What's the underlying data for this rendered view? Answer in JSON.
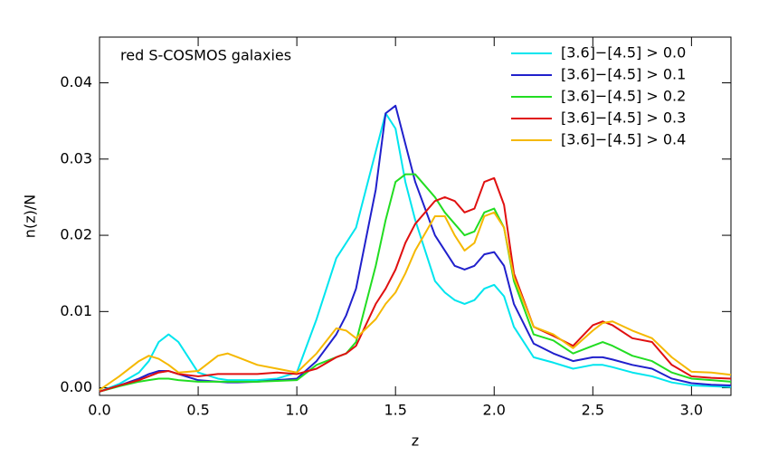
{
  "chart_data": {
    "type": "line",
    "annotation": "red S-COSMOS galaxies",
    "xlabel": "z",
    "ylabel": "n(z)/N",
    "x": [
      0,
      0.1,
      0.2,
      0.25,
      0.3,
      0.35,
      0.4,
      0.5,
      0.6,
      0.65,
      0.7,
      0.8,
      0.9,
      1.0,
      1.1,
      1.2,
      1.25,
      1.3,
      1.4,
      1.45,
      1.5,
      1.55,
      1.6,
      1.7,
      1.75,
      1.8,
      1.85,
      1.9,
      1.95,
      2.0,
      2.05,
      2.1,
      2.2,
      2.3,
      2.4,
      2.5,
      2.55,
      2.6,
      2.7,
      2.8,
      2.9,
      3.0,
      3.1,
      3.2
    ],
    "series": [
      {
        "name": "[3.6]−[4.5] > 0.0",
        "color": "#00e5ee",
        "values": [
          -0.0005,
          0.0005,
          0.002,
          0.0035,
          0.006,
          0.007,
          0.006,
          0.002,
          0.0012,
          0.001,
          0.001,
          0.001,
          0.0012,
          0.002,
          0.009,
          0.017,
          0.019,
          0.021,
          0.031,
          0.036,
          0.034,
          0.027,
          0.022,
          0.014,
          0.0125,
          0.0115,
          0.011,
          0.0115,
          0.013,
          0.0135,
          0.012,
          0.008,
          0.004,
          0.0033,
          0.0025,
          0.003,
          0.003,
          0.0027,
          0.002,
          0.0015,
          0.0007,
          0.0003,
          0.0002,
          0.0001
        ]
      },
      {
        "name": "[3.6]−[4.5] > 0.1",
        "color": "#2020cc",
        "values": [
          -0.0005,
          0.0003,
          0.0012,
          0.0018,
          0.0022,
          0.0022,
          0.0018,
          0.001,
          0.0008,
          0.0007,
          0.0007,
          0.0008,
          0.001,
          0.0012,
          0.0035,
          0.007,
          0.0095,
          0.013,
          0.026,
          0.036,
          0.037,
          0.032,
          0.027,
          0.02,
          0.018,
          0.016,
          0.0155,
          0.016,
          0.0175,
          0.0178,
          0.016,
          0.011,
          0.0058,
          0.0045,
          0.0035,
          0.004,
          0.004,
          0.0037,
          0.003,
          0.0025,
          0.0012,
          0.0006,
          0.0004,
          0.0003
        ]
      },
      {
        "name": "[3.6]−[4.5] > 0.2",
        "color": "#22dd22",
        "values": [
          -0.0005,
          0.0002,
          0.0008,
          0.001,
          0.0012,
          0.0012,
          0.001,
          0.0008,
          0.0008,
          0.0008,
          0.0008,
          0.0008,
          0.0009,
          0.001,
          0.003,
          0.004,
          0.0045,
          0.006,
          0.016,
          0.022,
          0.027,
          0.028,
          0.028,
          0.025,
          0.023,
          0.0215,
          0.02,
          0.0205,
          0.023,
          0.0235,
          0.021,
          0.014,
          0.007,
          0.0062,
          0.0045,
          0.0055,
          0.006,
          0.0055,
          0.0042,
          0.0035,
          0.002,
          0.0012,
          0.001,
          0.0008
        ]
      },
      {
        "name": "[3.6]−[4.5] > 0.3",
        "color": "#e01010",
        "values": [
          -0.0005,
          0.0003,
          0.001,
          0.0015,
          0.002,
          0.0022,
          0.0018,
          0.0015,
          0.0018,
          0.0018,
          0.0018,
          0.0018,
          0.002,
          0.0018,
          0.0025,
          0.004,
          0.0045,
          0.0055,
          0.011,
          0.013,
          0.0155,
          0.019,
          0.0215,
          0.0245,
          0.025,
          0.0245,
          0.023,
          0.0235,
          0.027,
          0.0275,
          0.024,
          0.015,
          0.008,
          0.0068,
          0.0055,
          0.0082,
          0.0087,
          0.0082,
          0.0065,
          0.006,
          0.003,
          0.0015,
          0.0013,
          0.0012
        ]
      },
      {
        "name": "[3.6]−[4.5] > 0.4",
        "color": "#f5b800",
        "values": [
          -0.0003,
          0.0015,
          0.0035,
          0.0042,
          0.0038,
          0.003,
          0.002,
          0.0022,
          0.0042,
          0.0045,
          0.004,
          0.003,
          0.0025,
          0.002,
          0.0045,
          0.0078,
          0.0075,
          0.0065,
          0.009,
          0.011,
          0.0125,
          0.015,
          0.018,
          0.0225,
          0.0225,
          0.02,
          0.018,
          0.019,
          0.0225,
          0.023,
          0.021,
          0.0145,
          0.008,
          0.007,
          0.0052,
          0.0075,
          0.0085,
          0.0087,
          0.0075,
          0.0065,
          0.004,
          0.0021,
          0.002,
          0.0017
        ]
      }
    ],
    "xlim": [
      0,
      3.2
    ],
    "ylim": [
      -0.001,
      0.046
    ],
    "xticks": [
      {
        "value": 0,
        "label": "0.0"
      },
      0.5,
      {
        "value": 1,
        "label": "1.0"
      },
      1.5,
      {
        "value": 2,
        "label": "2.0"
      },
      2.5,
      {
        "value": 3,
        "label": "3.0"
      }
    ],
    "yticks": [
      {
        "value": 0,
        "label": "0.00"
      },
      0.01,
      0.02,
      0.03,
      0.04
    ],
    "legend": "upper right"
  }
}
